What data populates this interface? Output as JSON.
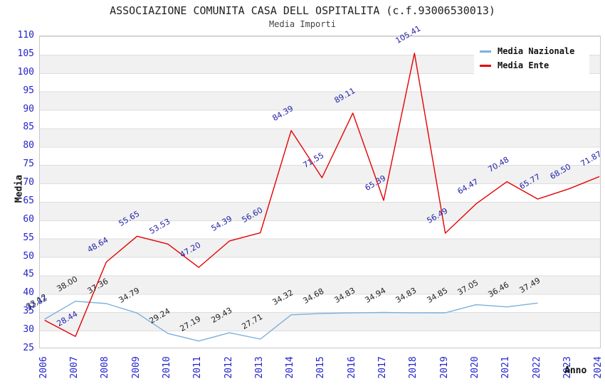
{
  "title": "ASSOCIAZIONE COMUNITA CASA DELL OSPITALITA (c.f.93006530013)",
  "subtitle": "Media Importi",
  "chart_data": {
    "type": "line",
    "x": [
      2006,
      2007,
      2008,
      2009,
      2010,
      2011,
      2012,
      2013,
      2014,
      2015,
      2016,
      2017,
      2018,
      2019,
      2020,
      2021,
      2022,
      2023,
      2024
    ],
    "xlabel": "Anno",
    "ylabel": "Media",
    "ylim": [
      25,
      110
    ],
    "ytick_step": 5,
    "grid": "alternating-horizontal-bands",
    "legend_position": "top-right",
    "axis_tick_color": "#2323cc",
    "band_color": "#f1f1f1",
    "series": [
      {
        "name": "Media Nazionale",
        "color": "#7cb0dc",
        "label_color": "#222222",
        "values": [
          33.12,
          38.0,
          37.36,
          34.79,
          29.24,
          27.19,
          29.43,
          27.71,
          34.32,
          34.68,
          34.83,
          34.94,
          34.83,
          34.85,
          37.05,
          36.46,
          37.49,
          null,
          null
        ]
      },
      {
        "name": "Media Ente",
        "color": "#e60000",
        "label_color": "#2222aa",
        "values": [
          32.82,
          28.44,
          48.64,
          55.65,
          53.53,
          47.2,
          54.39,
          56.6,
          84.39,
          71.55,
          89.11,
          65.39,
          105.41,
          56.49,
          64.47,
          70.48,
          65.77,
          68.5,
          71.87
        ]
      }
    ]
  }
}
